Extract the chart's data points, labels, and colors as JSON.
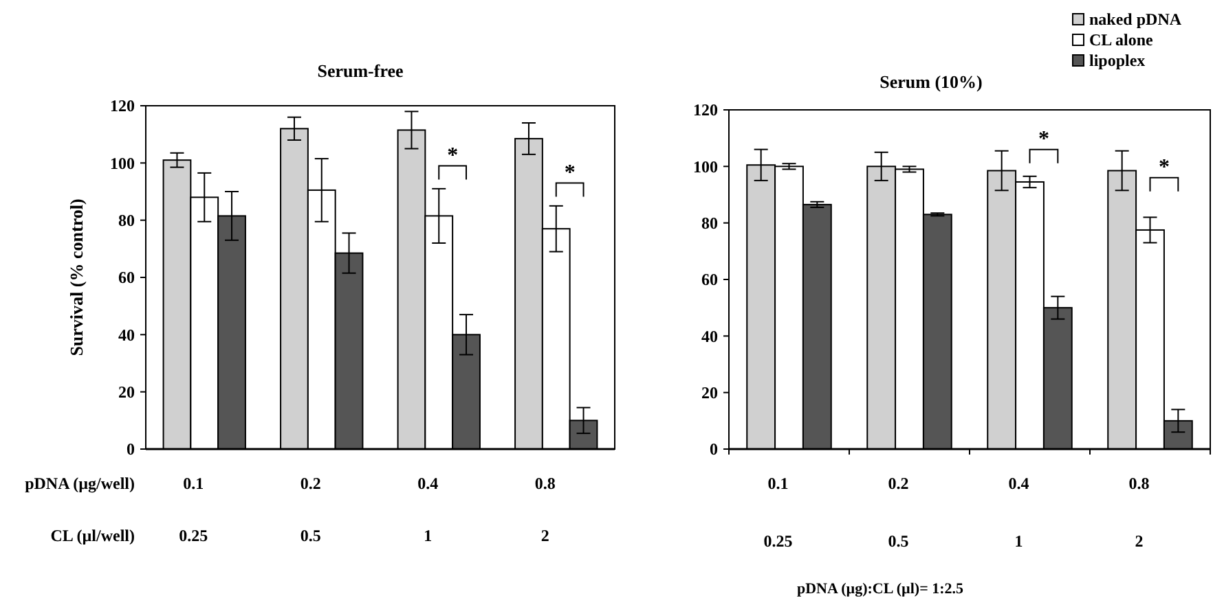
{
  "chart_data": [
    {
      "type": "bar",
      "title": "Serum-free",
      "ylabel": "Survival (% control)",
      "categories": [
        "0.1\n0.25",
        "0.2\n0.5",
        "0.4\n1",
        "0.8\n2"
      ],
      "series": [
        {
          "name": "naked pDNA",
          "color": "#d0d0d0",
          "values": [
            101,
            112,
            111.5,
            108.5
          ],
          "errors": [
            2.5,
            4,
            6.5,
            5.5
          ]
        },
        {
          "name": "CL alone",
          "color": "#ffffff",
          "values": [
            88,
            90.5,
            81.5,
            77
          ],
          "errors": [
            8.5,
            11,
            9.5,
            8
          ]
        },
        {
          "name": "lipoplex",
          "color": "#555555",
          "values": [
            81.5,
            68.5,
            40,
            10
          ],
          "errors": [
            8.5,
            7,
            7,
            4.5
          ]
        }
      ],
      "ylim": [
        0,
        120
      ],
      "yticks": [
        0,
        20,
        40,
        60,
        80,
        100,
        120
      ],
      "legend": "top right",
      "annotations": [
        "pDNA (µg/well)",
        "CL (µl/well)",
        "*",
        "*"
      ]
    },
    {
      "type": "bar",
      "title": "Serum (10%)",
      "categories": [
        "0.1\n0.25",
        "0.2\n0.5",
        "0.4\n1",
        "0.8\n2"
      ],
      "series": [
        {
          "color": "#d0d0d0",
          "values": [
            100.5,
            100,
            98.5,
            98.5
          ],
          "errors": [
            5.5,
            5,
            7,
            7
          ]
        },
        {
          "color": "#ffffff",
          "values": [
            100,
            99,
            94.5,
            77.5
          ],
          "errors": [
            1,
            1,
            2,
            4.5
          ]
        },
        {
          "color": "#555555",
          "values": [
            86.5,
            83,
            50,
            10
          ],
          "errors": [
            1,
            0.5,
            4,
            4
          ]
        }
      ],
      "ylim": [
        0,
        120
      ],
      "yticks": [
        0,
        20,
        40,
        60,
        80,
        100,
        120
      ],
      "annotations": [
        "pDNA (µg):CL (µl)= 1:2.5",
        "*",
        "*"
      ]
    }
  ]
}
